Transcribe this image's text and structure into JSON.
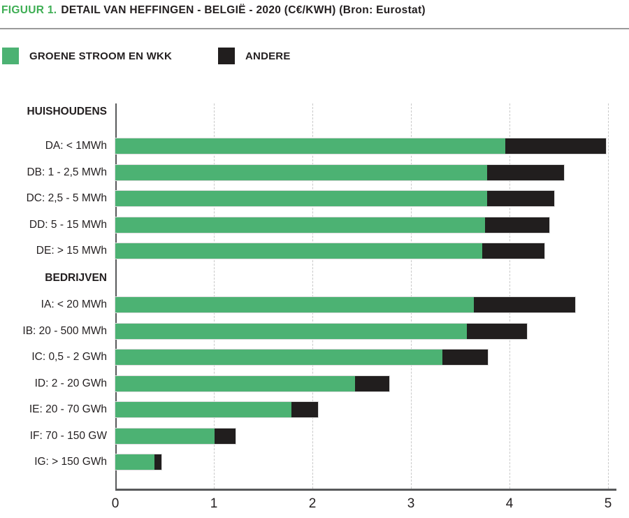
{
  "header": {
    "figure_label": "FIGUUR 1.",
    "title": "DETAIL VAN HEFFINGEN - BELGIË - 2020 (C€/KWH) (Bron: Eurostat)"
  },
  "legend": {
    "items": [
      {
        "label": "GROENE STROOM EN WKK",
        "color": "#4cb273"
      },
      {
        "label": "ANDERE",
        "color": "#211e1e"
      }
    ]
  },
  "colors": {
    "accent_green": "#4cb273",
    "title_green": "#3eae54",
    "series_dark": "#211e1e",
    "axis": "#58595b",
    "gridline": "#c9c9c9"
  },
  "chart_data": {
    "type": "bar",
    "orientation": "horizontal",
    "stacked": true,
    "title": "DETAIL VAN HEFFINGEN - BELGIË - 2020 (C€/KWH)",
    "source": "Bron: Eurostat",
    "value_unit": "c€/kWh",
    "xlim": [
      0,
      5
    ],
    "x_ticks": [
      "0",
      "1",
      "2",
      "3",
      "4",
      "5"
    ],
    "grid": "vertical-dashed",
    "legend_position": "top-left",
    "series_names": [
      "GROENE STROOM EN WKK",
      "ANDERE"
    ],
    "groups": [
      {
        "header": "HUISHOUDENS",
        "rows": [
          {
            "label": "DA: < 1MWh",
            "groene_stroom_en_wkk": 3.96,
            "andere": 1.02
          },
          {
            "label": "DB: 1 - 2,5 MWh",
            "groene_stroom_en_wkk": 3.77,
            "andere": 0.78
          },
          {
            "label": "DC: 2,5 - 5 MWh",
            "groene_stroom_en_wkk": 3.77,
            "andere": 0.68
          },
          {
            "label": "DD: 5 - 15 MWh",
            "groene_stroom_en_wkk": 3.75,
            "andere": 0.65
          },
          {
            "label": "DE: > 15 MWh",
            "groene_stroom_en_wkk": 3.72,
            "andere": 0.63
          }
        ]
      },
      {
        "header": "BEDRIJVEN",
        "rows": [
          {
            "label": "IA: < 20 MWh",
            "groene_stroom_en_wkk": 3.64,
            "andere": 1.03
          },
          {
            "label": "IB: 20 - 500 MWh",
            "groene_stroom_en_wkk": 3.57,
            "andere": 0.61
          },
          {
            "label": "IC: 0,5 - 2 GWh",
            "groene_stroom_en_wkk": 3.32,
            "andere": 0.46
          },
          {
            "label": "ID: 2 - 20 GWh",
            "groene_stroom_en_wkk": 2.43,
            "andere": 0.35
          },
          {
            "label": "IE: 20 - 70 GWh",
            "groene_stroom_en_wkk": 1.79,
            "andere": 0.27
          },
          {
            "label": "IF: 70 - 150 GW",
            "groene_stroom_en_wkk": 1.01,
            "andere": 0.21
          },
          {
            "label": "IG: > 150 GWh",
            "groene_stroom_en_wkk": 0.4,
            "andere": 0.07
          }
        ]
      }
    ]
  }
}
